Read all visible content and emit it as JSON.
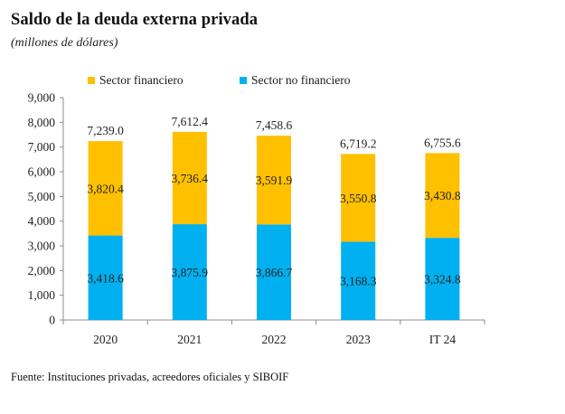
{
  "colors": {
    "financiero": "#ffc000",
    "no_financiero": "#00b0f0",
    "axis": "#8c8c8c"
  },
  "chart_data": {
    "type": "bar",
    "stacked": true,
    "title": "Saldo de la deuda externa privada",
    "subtitle": "(millones de dólares)",
    "xlabel": "",
    "ylabel": "",
    "categories": [
      "2020",
      "2021",
      "2022",
      "2023",
      "IT 24"
    ],
    "series": [
      {
        "name": "Sector no financiero",
        "key": "no_financiero",
        "values": [
          3418.6,
          3875.9,
          3866.7,
          3168.3,
          3324.8
        ],
        "labels": [
          "3,418.6",
          "3,875.9",
          "3,866.7",
          "3,168.3",
          "3,324.8"
        ]
      },
      {
        "name": "Sector financiero",
        "key": "financiero",
        "values": [
          3820.4,
          3736.4,
          3591.9,
          3550.8,
          3430.8
        ],
        "labels": [
          "3,820.4",
          "3,736.4",
          "3,591.9",
          "3,550.8",
          "3,430.8"
        ]
      }
    ],
    "totals": [
      7239.0,
      7612.4,
      7458.6,
      6719.2,
      6755.6
    ],
    "total_labels": [
      "7,239.0",
      "7,612.4",
      "7,458.6",
      "6,719.2",
      "6,755.6"
    ],
    "ylim": [
      0,
      9000
    ],
    "yticks": [
      0,
      1000,
      2000,
      3000,
      4000,
      5000,
      6000,
      7000,
      8000,
      9000
    ],
    "ytick_labels": [
      "0",
      "1,000",
      "2,000",
      "3,000",
      "4,000",
      "5,000",
      "6,000",
      "7,000",
      "8,000",
      "9,000"
    ],
    "grid": false,
    "legend": {
      "position": "top",
      "entries": [
        "Sector financiero",
        "Sector no financiero"
      ]
    },
    "source": "Fuente: Instituciones privadas, acreedores oficiales y SIBOIF"
  }
}
